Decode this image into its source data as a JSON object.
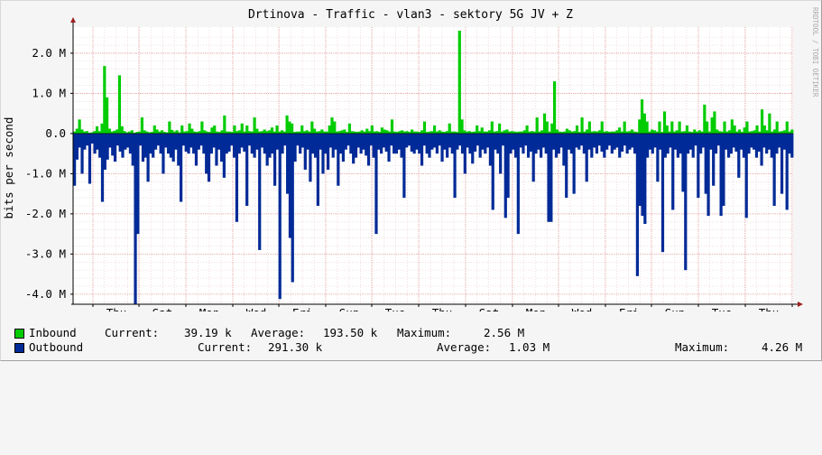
{
  "chart_data": {
    "type": "area",
    "title": "Drtinova - Traffic - vlan3 - sektory 5G JV + Z",
    "ylabel": "bits per second",
    "watermark": "RRDTOOL / TOBI OETIKER",
    "ylim": [
      -4.25,
      2.65
    ],
    "y_ticks": [
      {
        "value": 2.0,
        "label": "2.0 M"
      },
      {
        "value": 1.0,
        "label": "1.0 M"
      },
      {
        "value": 0.0,
        "label": "0.0"
      },
      {
        "value": -1.0,
        "label": "-1.0 M"
      },
      {
        "value": -2.0,
        "label": "-2.0 M"
      },
      {
        "value": -3.0,
        "label": "-3.0 M"
      },
      {
        "value": -4.0,
        "label": "-4.0 M"
      }
    ],
    "x_ticks": [
      "Thu",
      "Sat",
      "Mon",
      "Wed",
      "Fri",
      "Sun",
      "Tue",
      "Thu",
      "Sat",
      "Mon",
      "Wed",
      "Fri",
      "Sun",
      "Tue",
      "Thu"
    ],
    "grid": true,
    "colors": {
      "inbound": "#00cc00",
      "outbound": "#002a97",
      "major_grid": "#e6a0a0",
      "minor_grid": "#e8c8c8",
      "axis": "#000000",
      "arrow": "#a02020",
      "plot_bg": "#ffffff",
      "page_bg": "#f5f5f5"
    },
    "series": [
      {
        "name": "Inbound",
        "unit": "Mbit/s",
        "values": [
          0.05,
          0.12,
          0.35,
          0.1,
          0.05,
          0.06,
          0.02,
          0.03,
          0.06,
          0.18,
          0.06,
          0.25,
          1.68,
          0.9,
          0.12,
          0.05,
          0.07,
          0.1,
          1.45,
          0.18,
          0.06,
          0.03,
          0.05,
          0.08,
          0.02,
          0.04,
          0.05,
          0.4,
          0.08,
          0.05,
          0.03,
          0.04,
          0.2,
          0.1,
          0.05,
          0.08,
          0.04,
          0.03,
          0.3,
          0.09,
          0.05,
          0.08,
          0.03,
          0.2,
          0.05,
          0.06,
          0.25,
          0.12,
          0.05,
          0.04,
          0.06,
          0.3,
          0.08,
          0.05,
          0.04,
          0.15,
          0.2,
          0.05,
          0.04,
          0.08,
          0.45,
          0.05,
          0.05,
          0.04,
          0.2,
          0.06,
          0.08,
          0.25,
          0.05,
          0.2,
          0.06,
          0.05,
          0.4,
          0.12,
          0.05,
          0.06,
          0.1,
          0.06,
          0.08,
          0.15,
          0.05,
          0.2,
          0.05,
          0.08,
          0.05,
          0.45,
          0.3,
          0.25,
          0.04,
          0.05,
          0.05,
          0.2,
          0.06,
          0.08,
          0.05,
          0.3,
          0.12,
          0.05,
          0.06,
          0.1,
          0.05,
          0.05,
          0.2,
          0.4,
          0.3,
          0.05,
          0.06,
          0.08,
          0.1,
          0.04,
          0.25,
          0.06,
          0.05,
          0.04,
          0.05,
          0.08,
          0.05,
          0.12,
          0.06,
          0.2,
          0.05,
          0.06,
          0.04,
          0.15,
          0.1,
          0.08,
          0.05,
          0.35,
          0.05,
          0.04,
          0.06,
          0.08,
          0.05,
          0.06,
          0.04,
          0.1,
          0.05,
          0.05,
          0.04,
          0.08,
          0.3,
          0.04,
          0.05,
          0.06,
          0.2,
          0.05,
          0.08,
          0.05,
          0.04,
          0.06,
          0.25,
          0.05,
          0.05,
          0.04,
          2.56,
          0.35,
          0.08,
          0.05,
          0.06,
          0.04,
          0.05,
          0.2,
          0.06,
          0.15,
          0.05,
          0.05,
          0.08,
          0.3,
          0.05,
          0.06,
          0.25,
          0.05,
          0.08,
          0.1,
          0.05,
          0.06,
          0.05,
          0.04,
          0.05,
          0.05,
          0.08,
          0.2,
          0.05,
          0.06,
          0.05,
          0.4,
          0.05,
          0.08,
          0.5,
          0.3,
          0.05,
          0.25,
          1.3,
          0.1,
          0.05,
          0.04,
          0.05,
          0.12,
          0.08,
          0.05,
          0.06,
          0.2,
          0.04,
          0.4,
          0.05,
          0.1,
          0.3,
          0.05,
          0.06,
          0.05,
          0.08,
          0.3,
          0.05,
          0.06,
          0.04,
          0.05,
          0.05,
          0.08,
          0.15,
          0.05,
          0.3,
          0.05,
          0.06,
          0.1,
          0.05,
          0.04,
          0.35,
          0.85,
          0.5,
          0.3,
          0.05,
          0.1,
          0.08,
          0.05,
          0.3,
          0.04,
          0.55,
          0.2,
          0.05,
          0.3,
          0.05,
          0.08,
          0.3,
          0.05,
          0.06,
          0.2,
          0.05,
          0.04,
          0.1,
          0.05,
          0.08,
          0.05,
          0.72,
          0.3,
          0.05,
          0.4,
          0.55,
          0.1,
          0.06,
          0.05,
          0.3,
          0.05,
          0.08,
          0.35,
          0.2,
          0.05,
          0.1,
          0.04,
          0.15,
          0.3,
          0.05,
          0.06,
          0.08,
          0.2,
          0.05,
          0.6,
          0.2,
          0.08,
          0.5,
          0.05,
          0.1,
          0.3,
          0.05,
          0.06,
          0.08,
          0.3,
          0.05,
          0.1
        ]
      },
      {
        "name": "Outbound",
        "unit": "Mbit/s",
        "values": [
          -1.3,
          -0.65,
          -0.35,
          -1.0,
          -0.4,
          -0.3,
          -1.25,
          -0.25,
          -0.5,
          -0.4,
          -0.6,
          -1.7,
          -0.9,
          -0.65,
          -0.35,
          -0.55,
          -0.7,
          -0.3,
          -0.45,
          -0.6,
          -0.4,
          -0.35,
          -0.5,
          -0.8,
          -4.26,
          -2.5,
          -0.3,
          -0.7,
          -0.6,
          -1.2,
          -0.5,
          -0.6,
          -0.4,
          -0.3,
          -0.5,
          -1.0,
          -0.35,
          -0.5,
          -0.6,
          -0.7,
          -0.4,
          -0.8,
          -1.7,
          -0.3,
          -0.45,
          -0.5,
          -0.35,
          -0.5,
          -0.8,
          -0.4,
          -0.3,
          -0.5,
          -1.0,
          -1.2,
          -0.5,
          -0.35,
          -0.8,
          -0.4,
          -0.7,
          -1.1,
          -0.5,
          -0.45,
          -0.3,
          -0.6,
          -2.2,
          -0.5,
          -0.35,
          -0.45,
          -1.8,
          -0.3,
          -0.5,
          -0.6,
          -0.4,
          -2.9,
          -0.35,
          -0.5,
          -0.8,
          -0.6,
          -0.5,
          -1.3,
          -0.4,
          -4.12,
          -0.5,
          -0.3,
          -1.5,
          -2.6,
          -3.7,
          -0.7,
          -0.3,
          -0.5,
          -0.35,
          -0.9,
          -0.4,
          -1.2,
          -0.5,
          -0.6,
          -1.8,
          -0.4,
          -1.0,
          -0.5,
          -0.9,
          -0.35,
          -0.6,
          -0.4,
          -1.3,
          -0.5,
          -0.7,
          -0.4,
          -0.3,
          -0.5,
          -0.75,
          -0.6,
          -0.35,
          -0.5,
          -0.4,
          -0.55,
          -0.8,
          -0.3,
          -0.6,
          -2.5,
          -0.4,
          -0.5,
          -0.35,
          -0.45,
          -0.7,
          -0.3,
          -0.5,
          -0.5,
          -0.4,
          -0.6,
          -1.6,
          -0.35,
          -0.3,
          -0.45,
          -0.5,
          -0.4,
          -0.5,
          -0.8,
          -0.3,
          -0.5,
          -0.6,
          -0.4,
          -0.35,
          -0.5,
          -0.3,
          -0.7,
          -0.4,
          -0.6,
          -0.35,
          -0.5,
          -1.6,
          -0.4,
          -0.3,
          -0.5,
          -1.0,
          -0.35,
          -0.5,
          -0.75,
          -0.45,
          -0.3,
          -0.6,
          -0.4,
          -0.5,
          -0.35,
          -0.8,
          -1.9,
          -0.4,
          -0.5,
          -1.0,
          -0.3,
          -2.1,
          -1.6,
          -0.5,
          -0.4,
          -0.6,
          -2.5,
          -0.35,
          -0.5,
          -0.3,
          -0.6,
          -0.45,
          -1.2,
          -0.5,
          -0.4,
          -0.6,
          -0.35,
          -0.5,
          -2.2,
          -2.2,
          -0.4,
          -0.6,
          -0.5,
          -0.35,
          -0.8,
          -1.6,
          -0.4,
          -0.5,
          -1.5,
          -0.35,
          -0.4,
          -0.3,
          -0.5,
          -1.2,
          -0.4,
          -0.6,
          -0.35,
          -0.5,
          -0.3,
          -0.45,
          -0.6,
          -0.4,
          -0.3,
          -0.5,
          -0.4,
          -0.35,
          -0.6,
          -0.45,
          -0.3,
          -0.5,
          -0.4,
          -0.35,
          -0.5,
          -3.55,
          -1.8,
          -2.05,
          -2.25,
          -0.6,
          -0.4,
          -0.5,
          -0.35,
          -1.2,
          -0.4,
          -2.95,
          -0.6,
          -0.5,
          -0.35,
          -1.9,
          -0.4,
          -0.6,
          -0.5,
          -1.45,
          -3.4,
          -0.5,
          -0.4,
          -0.6,
          -0.3,
          -1.6,
          -0.5,
          -0.35,
          -1.5,
          -2.05,
          -0.4,
          -1.3,
          -0.5,
          -0.3,
          -2.05,
          -1.8,
          -0.4,
          -0.6,
          -0.5,
          -0.35,
          -0.45,
          -1.1,
          -0.4,
          -0.6,
          -2.1,
          -0.5,
          -0.35,
          -0.4,
          -0.6,
          -0.45,
          -0.8,
          -0.35,
          -0.5,
          -0.4,
          -0.6,
          -1.8,
          -0.5,
          -0.35,
          -1.5,
          -0.4,
          -1.9,
          -0.5,
          -0.6
        ]
      }
    ]
  },
  "legend": {
    "inbound": {
      "name": "Inbound",
      "current_label": "Current:",
      "current_value": "39.19 k",
      "average_label": "Average:",
      "average_value": "193.50 k",
      "maximum_label": "Maximum:",
      "maximum_value": "2.56 M"
    },
    "outbound": {
      "name": "Outbound",
      "current_label": "Current:",
      "current_value": "291.30 k",
      "average_label": "Average:",
      "average_value": "1.03 M",
      "maximum_label": "Maximum:",
      "maximum_value": "4.26 M"
    }
  }
}
